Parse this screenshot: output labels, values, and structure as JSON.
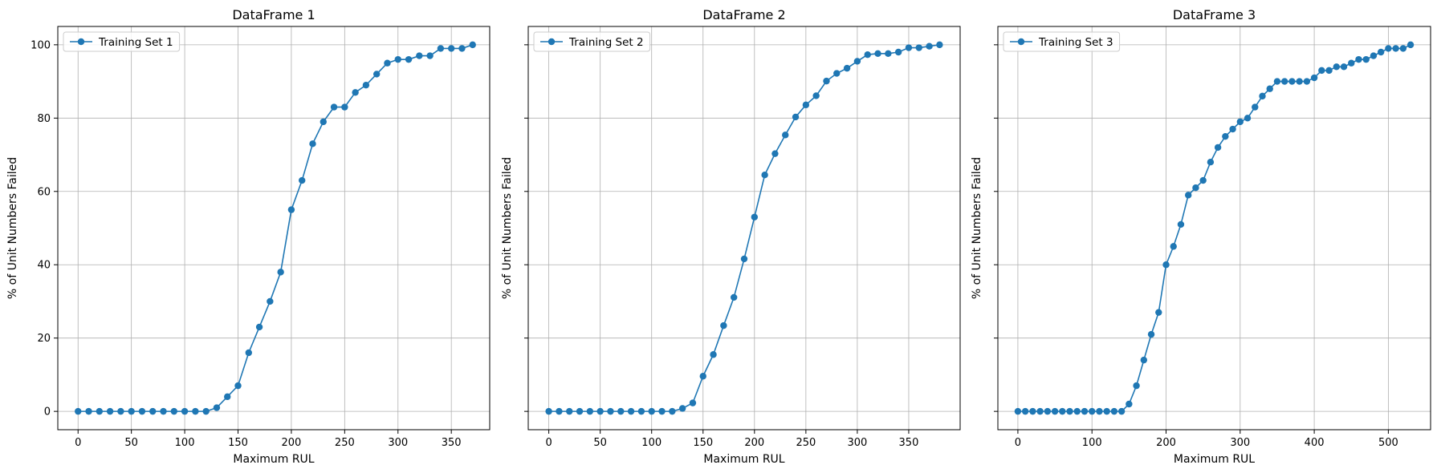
{
  "chart_data": [
    {
      "type": "line",
      "title": "DataFrame 1",
      "xlabel": "Maximum RUL",
      "ylabel": "% of Unit Numbers Failed",
      "xlim": [
        -19,
        386
      ],
      "ylim": [
        -5,
        105
      ],
      "xticks": [
        0,
        50,
        100,
        150,
        200,
        250,
        300,
        350
      ],
      "yticks": [
        0,
        20,
        40,
        60,
        80,
        100
      ],
      "grid": true,
      "legend_position": "upper-left",
      "series": [
        {
          "name": "Training Set 1",
          "color": "#1f77b4",
          "marker": "circle",
          "x": [
            0,
            10,
            20,
            30,
            40,
            50,
            60,
            70,
            80,
            90,
            100,
            110,
            120,
            130,
            140,
            150,
            160,
            170,
            180,
            190,
            200,
            210,
            220,
            230,
            240,
            250,
            260,
            270,
            280,
            290,
            300,
            310,
            320,
            330,
            340,
            350,
            360,
            370
          ],
          "y": [
            0,
            0,
            0,
            0,
            0,
            0,
            0,
            0,
            0,
            0,
            0,
            0,
            0,
            1,
            4,
            7,
            16,
            23,
            30,
            38,
            55,
            63,
            73,
            79,
            83,
            83,
            87,
            89,
            92,
            95,
            96,
            96,
            97,
            97,
            99,
            99,
            99,
            100
          ]
        }
      ]
    },
    {
      "type": "line",
      "title": "DataFrame 2",
      "xlabel": "Maximum RUL",
      "ylabel": "% of Unit Numbers Failed",
      "xlim": [
        -20,
        400
      ],
      "ylim": [
        -5,
        105
      ],
      "xticks": [
        0,
        50,
        100,
        150,
        200,
        250,
        300,
        350
      ],
      "yticks": [
        0,
        20,
        40,
        60,
        80,
        100
      ],
      "grid": true,
      "legend_position": "upper-left",
      "series": [
        {
          "name": "Training Set 2",
          "color": "#1f77b4",
          "marker": "circle",
          "x": [
            0,
            10,
            20,
            30,
            40,
            50,
            60,
            70,
            80,
            90,
            100,
            110,
            120,
            130,
            140,
            150,
            160,
            170,
            180,
            190,
            200,
            210,
            220,
            230,
            240,
            250,
            260,
            270,
            280,
            290,
            300,
            310,
            320,
            330,
            340,
            350,
            360,
            370,
            380
          ],
          "y": [
            0,
            0,
            0,
            0,
            0,
            0,
            0,
            0,
            0,
            0,
            0,
            0,
            0,
            0.8,
            2.3,
            9.6,
            15.5,
            23.4,
            31.1,
            41.6,
            53,
            64.5,
            70.3,
            75.4,
            80.3,
            83.6,
            86.1,
            90.1,
            92.2,
            93.6,
            95.5,
            97.3,
            97.6,
            97.6,
            98,
            99.2,
            99.2,
            99.6,
            100
          ]
        }
      ]
    },
    {
      "type": "line",
      "title": "DataFrame 3",
      "xlabel": "Maximum RUL",
      "ylabel": "% of Unit Numbers Failed",
      "xlim": [
        -27,
        557
      ],
      "ylim": [
        -5,
        105
      ],
      "xticks": [
        0,
        100,
        200,
        300,
        400,
        500
      ],
      "yticks": [
        0,
        20,
        40,
        60,
        80,
        100
      ],
      "grid": true,
      "legend_position": "upper-left",
      "series": [
        {
          "name": "Training Set 3",
          "color": "#1f77b4",
          "marker": "circle",
          "x": [
            0,
            10,
            20,
            30,
            40,
            50,
            60,
            70,
            80,
            90,
            100,
            110,
            120,
            130,
            140,
            150,
            160,
            170,
            180,
            190,
            200,
            210,
            220,
            230,
            240,
            250,
            260,
            270,
            280,
            290,
            300,
            310,
            320,
            330,
            340,
            350,
            360,
            370,
            380,
            390,
            400,
            410,
            420,
            430,
            440,
            450,
            460,
            470,
            480,
            490,
            500,
            510,
            520,
            530
          ],
          "y": [
            0,
            0,
            0,
            0,
            0,
            0,
            0,
            0,
            0,
            0,
            0,
            0,
            0,
            0,
            0,
            2,
            7,
            14,
            21,
            27,
            40,
            45,
            51,
            59,
            61,
            63,
            68,
            72,
            75,
            77,
            79,
            80,
            83,
            86,
            88,
            90,
            90,
            90,
            90,
            90,
            91,
            93,
            93,
            94,
            94,
            95,
            96,
            96,
            97,
            98,
            99,
            99,
            99,
            100
          ]
        }
      ]
    }
  ]
}
